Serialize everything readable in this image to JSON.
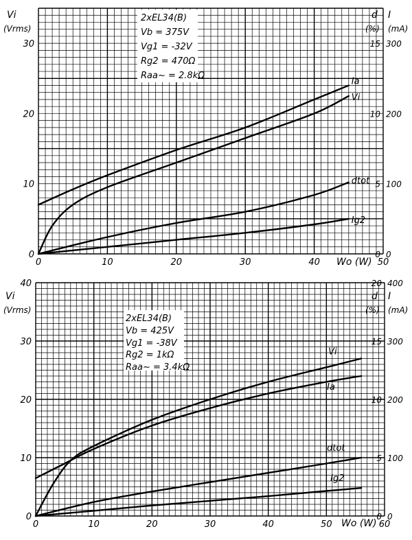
{
  "chart_data": [
    {
      "type": "line",
      "x_max_label": "50",
      "xlabel": "Wo (W)",
      "x_ticks": [
        0,
        10,
        20,
        30,
        40,
        50
      ],
      "left_axis": {
        "label_top": "Vi",
        "label_unit": "(Vrms)",
        "ticks": [
          0,
          10,
          20,
          30
        ]
      },
      "right_d_axis": {
        "label": "d",
        "unit": "(%)",
        "ticks": [
          0,
          5,
          10,
          15
        ]
      },
      "right_i_axis": {
        "label": "I",
        "unit": "(mA)",
        "ticks": [
          0,
          100,
          200,
          300
        ]
      },
      "info_box": [
        "2xEL34(B)",
        "Vb = 375V",
        "Vg1 = -32V",
        "Rg2 = 470Ω",
        "Raa~ = 2.8kΩ"
      ],
      "series": [
        {
          "name": "Ia",
          "axis": "I (mA)",
          "x": [
            0,
            5,
            10,
            20,
            30,
            40,
            45
          ],
          "values": [
            70,
            92,
            112,
            148,
            180,
            220,
            240
          ]
        },
        {
          "name": "Vi",
          "axis": "Vi (Vrms)",
          "x": [
            0,
            2,
            5,
            10,
            20,
            30,
            40,
            45
          ],
          "values": [
            0,
            4,
            7,
            9.5,
            13,
            16.5,
            20,
            22.5
          ]
        },
        {
          "name": "dtot",
          "axis": "d (%)",
          "x": [
            0,
            10,
            20,
            30,
            40,
            45
          ],
          "values": [
            0,
            1.2,
            2.2,
            3,
            4.2,
            5.1
          ]
        },
        {
          "name": "Ig2",
          "axis": "I (mA)",
          "x": [
            0,
            10,
            20,
            30,
            40,
            45
          ],
          "values": [
            0,
            10,
            20,
            30,
            42,
            50
          ]
        }
      ]
    },
    {
      "type": "line",
      "x_max_label": "60",
      "xlabel": "Wo (W)",
      "x_ticks": [
        0,
        10,
        20,
        30,
        40,
        50,
        60
      ],
      "left_axis": {
        "label_top": "Vi",
        "label_unit": "(Vrms)",
        "ticks": [
          0,
          10,
          20,
          30,
          40
        ]
      },
      "right_d_axis": {
        "label": "d",
        "unit": "(%)",
        "ticks": [
          0,
          5,
          10,
          15,
          20
        ]
      },
      "right_i_axis": {
        "label": "I",
        "unit": "(mA)",
        "ticks": [
          0,
          100,
          200,
          300,
          400
        ]
      },
      "info_box": [
        "2xEL34(B)",
        "Vb = 425V",
        "Vg1 = -38V",
        "Rg2 = 1kΩ",
        "Raa~ = 3.4kΩ"
      ],
      "series": [
        {
          "name": "Vi",
          "axis": "Vi (Vrms)",
          "x": [
            0,
            3,
            6,
            10,
            20,
            30,
            40,
            50,
            56
          ],
          "values": [
            0,
            5.5,
            9.5,
            12,
            16.5,
            20,
            23,
            25.5,
            27
          ]
        },
        {
          "name": "Ia",
          "axis": "I (mA)",
          "x": [
            0,
            5,
            10,
            20,
            30,
            40,
            50,
            56
          ],
          "values": [
            65,
            90,
            115,
            155,
            185,
            210,
            230,
            240
          ]
        },
        {
          "name": "dtot",
          "axis": "d (%)",
          "x": [
            0,
            10,
            20,
            30,
            40,
            50,
            56
          ],
          "values": [
            0,
            1.2,
            2.1,
            2.9,
            3.7,
            4.5,
            5
          ]
        },
        {
          "name": "Ig2",
          "axis": "I (mA)",
          "x": [
            0,
            10,
            20,
            30,
            40,
            50,
            56
          ],
          "values": [
            0,
            9,
            18,
            26,
            34,
            43,
            48
          ]
        }
      ]
    }
  ]
}
